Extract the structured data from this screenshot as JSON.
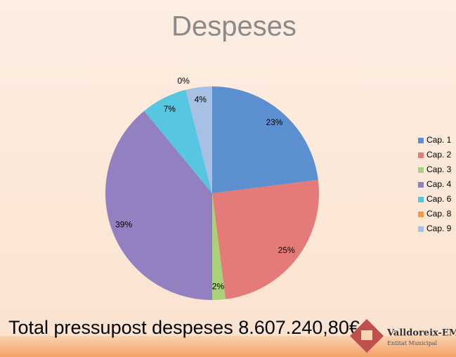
{
  "chart_data": {
    "type": "pie",
    "title": "Despeses",
    "categories": [
      "Cap. 1",
      "Cap. 2",
      "Cap. 3",
      "Cap. 4",
      "Cap. 6",
      "Cap. 8",
      "Cap. 9"
    ],
    "values": [
      23,
      25,
      2,
      39,
      7,
      0,
      4
    ],
    "value_labels": [
      "23%",
      "25%",
      "2%",
      "39%",
      "7%",
      "0%",
      "4%"
    ],
    "colors": [
      "#5b8fd0",
      "#e57b78",
      "#a9d07a",
      "#9280c0",
      "#57c6e0",
      "#f79646",
      "#a8c0e3"
    ],
    "legend": "right"
  },
  "total": "Total pressupost despeses 8.607.240,80€",
  "logo": {
    "name": "Valldoreix-EMD",
    "subtitle": "Entitat Municipal"
  }
}
